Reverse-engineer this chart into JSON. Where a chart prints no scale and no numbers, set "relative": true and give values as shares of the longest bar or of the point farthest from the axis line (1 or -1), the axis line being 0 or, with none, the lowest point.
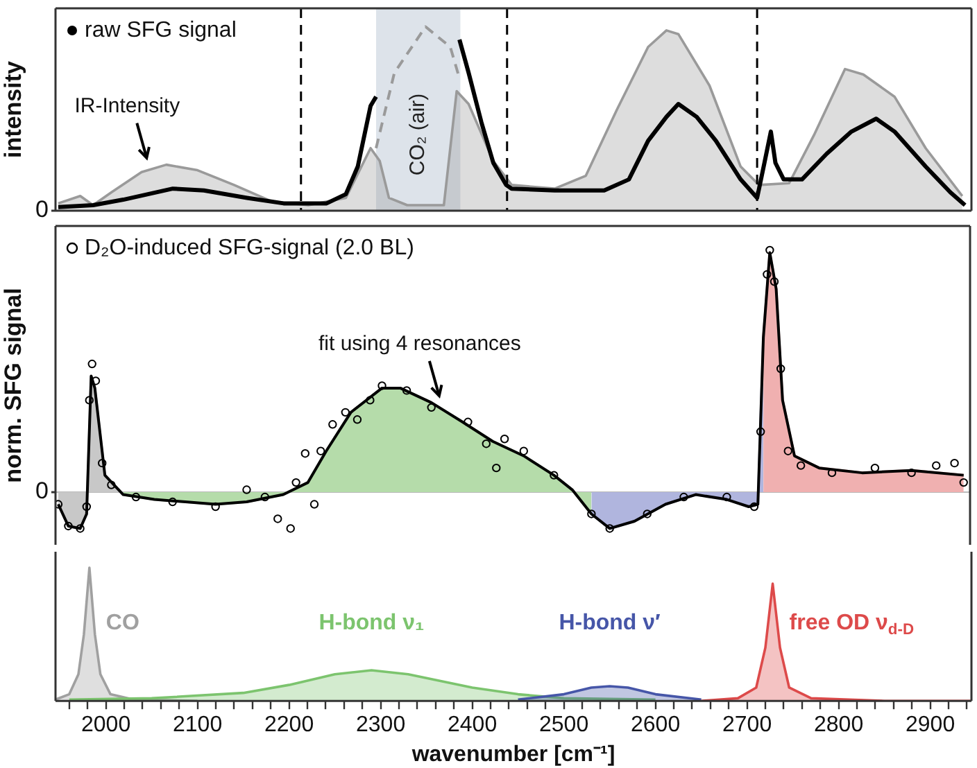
{
  "chart_data": [
    {
      "type": "line",
      "ylabel": "intensity",
      "relative": true,
      "xlim": [
        1945,
        2945
      ],
      "tick_labels": "y",
      "legend": "top left",
      "annotations": [
        "0",
        {
          "text": "IR-Intensity",
          "x": 2046,
          "y": 0.25
        }
      ],
      "bands": [
        {
          "axis": "x",
          "from": 2295,
          "to": 2387,
          "label": "CO₂ (air)",
          "color": "#dde3ea"
        }
      ],
      "ref_lines": [
        {
          "axis": "x",
          "value": 2213,
          "color": "#000000",
          "line_style": "dashed"
        },
        {
          "axis": "x",
          "value": 2438,
          "color": "#000000",
          "line_style": "dashed"
        },
        {
          "axis": "x",
          "value": 2711,
          "color": "#000000",
          "line_style": "dashed"
        }
      ],
      "series": [
        {
          "type": "area",
          "color": "#9a9a9a",
          "x": [
            1948,
            1972,
            1986,
            2006,
            2039,
            2066,
            2100,
            2140,
            2181,
            2221,
            2262,
            2289,
            2299,
            2309,
            2329,
            2349,
            2369,
            2383,
            2396,
            2423,
            2443,
            2490,
            2524,
            2558,
            2592,
            2612,
            2625,
            2659,
            2693,
            2713,
            2746,
            2773,
            2807,
            2827,
            2861,
            2895,
            2935
          ],
          "values": [
            0.04,
            0.08,
            0.03,
            0.1,
            0.21,
            0.25,
            0.22,
            0.14,
            0.05,
            0.03,
            0.07,
            0.34,
            0.27,
            0.07,
            0.03,
            0.03,
            0.03,
            0.65,
            0.58,
            0.27,
            0.14,
            0.12,
            0.19,
            0.55,
            0.89,
            0.98,
            0.96,
            0.68,
            0.24,
            0.14,
            0.15,
            0.41,
            0.77,
            0.74,
            0.62,
            0.34,
            0.08
          ]
        },
        {
          "color": "#9a9a9a",
          "line_style": "dashed",
          "x": [
            2295,
            2315,
            2349,
            2376,
            2386
          ],
          "values": [
            0.34,
            0.75,
            1.0,
            0.89,
            0.72
          ]
        },
        {
          "name": "raw SFG signal",
          "color": "#000000",
          "marker": "none",
          "x": [
            1948,
            1986,
            2019,
            2073,
            2107,
            2154,
            2194,
            2241,
            2262,
            2275,
            2289,
            2295,
            2340,
            2386,
            2396,
            2410,
            2423,
            2437,
            2443,
            2490,
            2544,
            2571,
            2592,
            2612,
            2625,
            2645,
            2666,
            2693,
            2711,
            2719,
            2726,
            2731,
            2740,
            2760,
            2787,
            2814,
            2841,
            2861,
            2895,
            2922,
            2938
          ],
          "values": [
            0.02,
            0.03,
            0.06,
            0.12,
            0.11,
            0.07,
            0.04,
            0.04,
            0.09,
            0.24,
            0.57,
            0.62,
            null,
            0.93,
            0.75,
            0.48,
            0.26,
            0.14,
            0.12,
            0.11,
            0.11,
            0.17,
            0.38,
            0.51,
            0.58,
            0.51,
            0.38,
            0.17,
            0.07,
            0.26,
            0.43,
            0.26,
            0.17,
            0.17,
            0.31,
            0.43,
            0.5,
            0.43,
            0.24,
            0.1,
            0.03
          ]
        }
      ]
    },
    {
      "type": "line",
      "ylabel": "norm. SFG signal",
      "relative": true,
      "xlim": [
        1945,
        2945
      ],
      "tick_labels": "y",
      "legend": "top left",
      "annotations": [
        "0",
        {
          "text": "fit using 4 resonances",
          "x": 2366,
          "y": 0.37
        }
      ],
      "series": [
        {
          "type": "area",
          "color": "#c8c8c8",
          "x": [
            1948,
            1959,
            1972,
            1979,
            1984,
            1988,
            1999,
            2019
          ],
          "values": [
            -0.05,
            -0.14,
            -0.15,
            -0.09,
            0.48,
            0.43,
            0.07,
            -0.01
          ]
        },
        {
          "type": "area",
          "color": "#b5dcaa",
          "x": [
            2019,
            2053,
            2087,
            2120,
            2154,
            2194,
            2221,
            2241,
            2268,
            2302,
            2322,
            2356,
            2390,
            2423,
            2457,
            2490,
            2510,
            2531
          ],
          "values": [
            -0.01,
            -0.03,
            -0.04,
            -0.05,
            -0.04,
            -0.01,
            0.04,
            0.17,
            0.33,
            0.43,
            0.43,
            0.37,
            0.29,
            0.21,
            0.15,
            0.07,
            0.01,
            -0.09
          ]
        },
        {
          "type": "area",
          "color": "#b0b5de",
          "x": [
            2531,
            2551,
            2578,
            2612,
            2645,
            2679,
            2703,
            2713,
            2719
          ],
          "values": [
            -0.09,
            -0.15,
            -0.12,
            -0.05,
            -0.01,
            -0.03,
            -0.06,
            -0.05,
            0.64
          ]
        },
        {
          "type": "area",
          "color": "#f0b0b0",
          "x": [
            2719,
            2726,
            2733,
            2740,
            2753,
            2780,
            2827,
            2881,
            2938
          ],
          "values": [
            0.64,
            0.99,
            0.84,
            0.38,
            0.15,
            0.1,
            0.08,
            0.09,
            0.07
          ]
        },
        {
          "color": "#000000",
          "marker": "none",
          "x": [
            1948,
            1959,
            1972,
            1979,
            1984,
            1988,
            1999,
            2019,
            2053,
            2087,
            2120,
            2154,
            2194,
            2221,
            2241,
            2268,
            2302,
            2322,
            2356,
            2390,
            2423,
            2457,
            2490,
            2510,
            2531,
            2551,
            2578,
            2612,
            2645,
            2679,
            2703,
            2713,
            2719,
            2726,
            2733,
            2740,
            2753,
            2780,
            2827,
            2881,
            2938
          ],
          "values": [
            -0.05,
            -0.14,
            -0.15,
            -0.09,
            0.48,
            0.43,
            0.07,
            -0.01,
            -0.03,
            -0.04,
            -0.05,
            -0.04,
            -0.01,
            0.04,
            0.17,
            0.33,
            0.43,
            0.43,
            0.37,
            0.29,
            0.21,
            0.15,
            0.07,
            0.01,
            -0.09,
            -0.15,
            -0.12,
            -0.05,
            -0.01,
            -0.03,
            -0.06,
            -0.05,
            0.64,
            0.99,
            0.84,
            0.38,
            0.15,
            0.1,
            0.08,
            0.09,
            0.07
          ]
        },
        {
          "type": "scatter",
          "name": "D₂O-induced SFG-signal (2.0 BL)",
          "color": "#000000",
          "marker": "circle",
          "x": [
            1948,
            1959,
            1972,
            1979,
            1982,
            1985,
            1989,
            1996,
            2006,
            2033,
            2073,
            2120,
            2154,
            2174,
            2188,
            2202,
            2208,
            2218,
            2228,
            2235,
            2248,
            2262,
            2275,
            2289,
            2302,
            2329,
            2356,
            2396,
            2416,
            2427,
            2436,
            2457,
            2490,
            2531,
            2551,
            2592,
            2632,
            2679,
            2709,
            2716,
            2723,
            2726,
            2731,
            2738,
            2746,
            2760,
            2794,
            2841,
            2881,
            2908,
            2928,
            2938
          ],
          "values": [
            -0.05,
            -0.14,
            -0.15,
            -0.06,
            0.38,
            0.53,
            0.46,
            0.12,
            0.03,
            -0.02,
            -0.04,
            -0.06,
            0.01,
            -0.02,
            -0.11,
            -0.15,
            0.04,
            0.16,
            -0.05,
            0.17,
            0.28,
            0.33,
            0.3,
            0.38,
            0.44,
            0.42,
            0.35,
            0.29,
            0.2,
            0.1,
            0.22,
            0.17,
            0.07,
            -0.09,
            -0.15,
            -0.09,
            -0.02,
            -0.02,
            -0.06,
            0.25,
            0.9,
            1.0,
            0.87,
            0.51,
            0.17,
            0.11,
            0.08,
            0.1,
            0.08,
            0.11,
            0.12,
            0.04
          ]
        }
      ]
    },
    {
      "type": "area",
      "xlabel": "wavenumber [cm⁻¹]",
      "relative": true,
      "xlim": [
        1945,
        2945
      ],
      "tick_labels": "x",
      "xticks": [
        {
          "value": 1960,
          "label": null
        },
        {
          "value": 1980,
          "label": null
        },
        2000,
        {
          "value": 2020,
          "label": null
        },
        {
          "value": 2040,
          "label": null
        },
        {
          "value": 2060,
          "label": null
        },
        {
          "value": 2080,
          "label": null
        },
        2100,
        {
          "value": 2120,
          "label": null
        },
        {
          "value": 2140,
          "label": null
        },
        {
          "value": 2160,
          "label": null
        },
        {
          "value": 2180,
          "label": null
        },
        2200,
        {
          "value": 2220,
          "label": null
        },
        {
          "value": 2240,
          "label": null
        },
        {
          "value": 2260,
          "label": null
        },
        {
          "value": 2280,
          "label": null
        },
        2300,
        {
          "value": 2320,
          "label": null
        },
        {
          "value": 2340,
          "label": null
        },
        {
          "value": 2360,
          "label": null
        },
        {
          "value": 2380,
          "label": null
        },
        2400,
        {
          "value": 2420,
          "label": null
        },
        {
          "value": 2440,
          "label": null
        },
        {
          "value": 2460,
          "label": null
        },
        {
          "value": 2480,
          "label": null
        },
        2500,
        {
          "value": 2520,
          "label": null
        },
        {
          "value": 2540,
          "label": null
        },
        {
          "value": 2560,
          "label": null
        },
        {
          "value": 2580,
          "label": null
        },
        2600,
        {
          "value": 2620,
          "label": null
        },
        {
          "value": 2640,
          "label": null
        },
        {
          "value": 2660,
          "label": null
        },
        {
          "value": 2680,
          "label": null
        },
        2700,
        {
          "value": 2720,
          "label": null
        },
        {
          "value": 2740,
          "label": null
        },
        {
          "value": 2760,
          "label": null
        },
        {
          "value": 2780,
          "label": null
        },
        2800,
        {
          "value": 2820,
          "label": null
        },
        {
          "value": 2840,
          "label": null
        },
        {
          "value": 2860,
          "label": null
        },
        {
          "value": 2880,
          "label": null
        },
        2900,
        {
          "value": 2920,
          "label": null
        },
        {
          "value": 2940,
          "label": null
        }
      ],
      "series": [
        {
          "name": "CO",
          "color": "#a0a0a0",
          "x": [
            1945,
            1960,
            1970,
            1976,
            1982,
            1988,
            1994,
            2005,
            2030,
            2100
          ],
          "values": [
            0.01,
            0.05,
            0.2,
            0.5,
            1.0,
            0.5,
            0.2,
            0.05,
            0.01,
            0.0
          ]
        },
        {
          "name": "H-bond ν₁",
          "color": "#7cc46e",
          "x": [
            1960,
            2050,
            2150,
            2200,
            2250,
            2290,
            2330,
            2400,
            2450,
            2500,
            2600
          ],
          "values": [
            0.01,
            0.02,
            0.06,
            0.12,
            0.2,
            0.23,
            0.2,
            0.1,
            0.05,
            0.02,
            0.01
          ]
        },
        {
          "name": "H-bond ν′",
          "color": "#4656a8",
          "x": [
            2450,
            2500,
            2530,
            2550,
            2570,
            2600,
            2650
          ],
          "values": [
            0.01,
            0.05,
            0.1,
            0.11,
            0.1,
            0.05,
            0.01
          ]
        },
        {
          "name": "free OD ν$_{d-D}$",
          "color": "#dd4a4a",
          "x": [
            2650,
            2690,
            2710,
            2720,
            2728,
            2736,
            2746,
            2770,
            2850,
            2945
          ],
          "values": [
            0.0,
            0.02,
            0.1,
            0.4,
            0.88,
            0.4,
            0.1,
            0.02,
            0.0,
            0.0
          ]
        }
      ]
    }
  ]
}
